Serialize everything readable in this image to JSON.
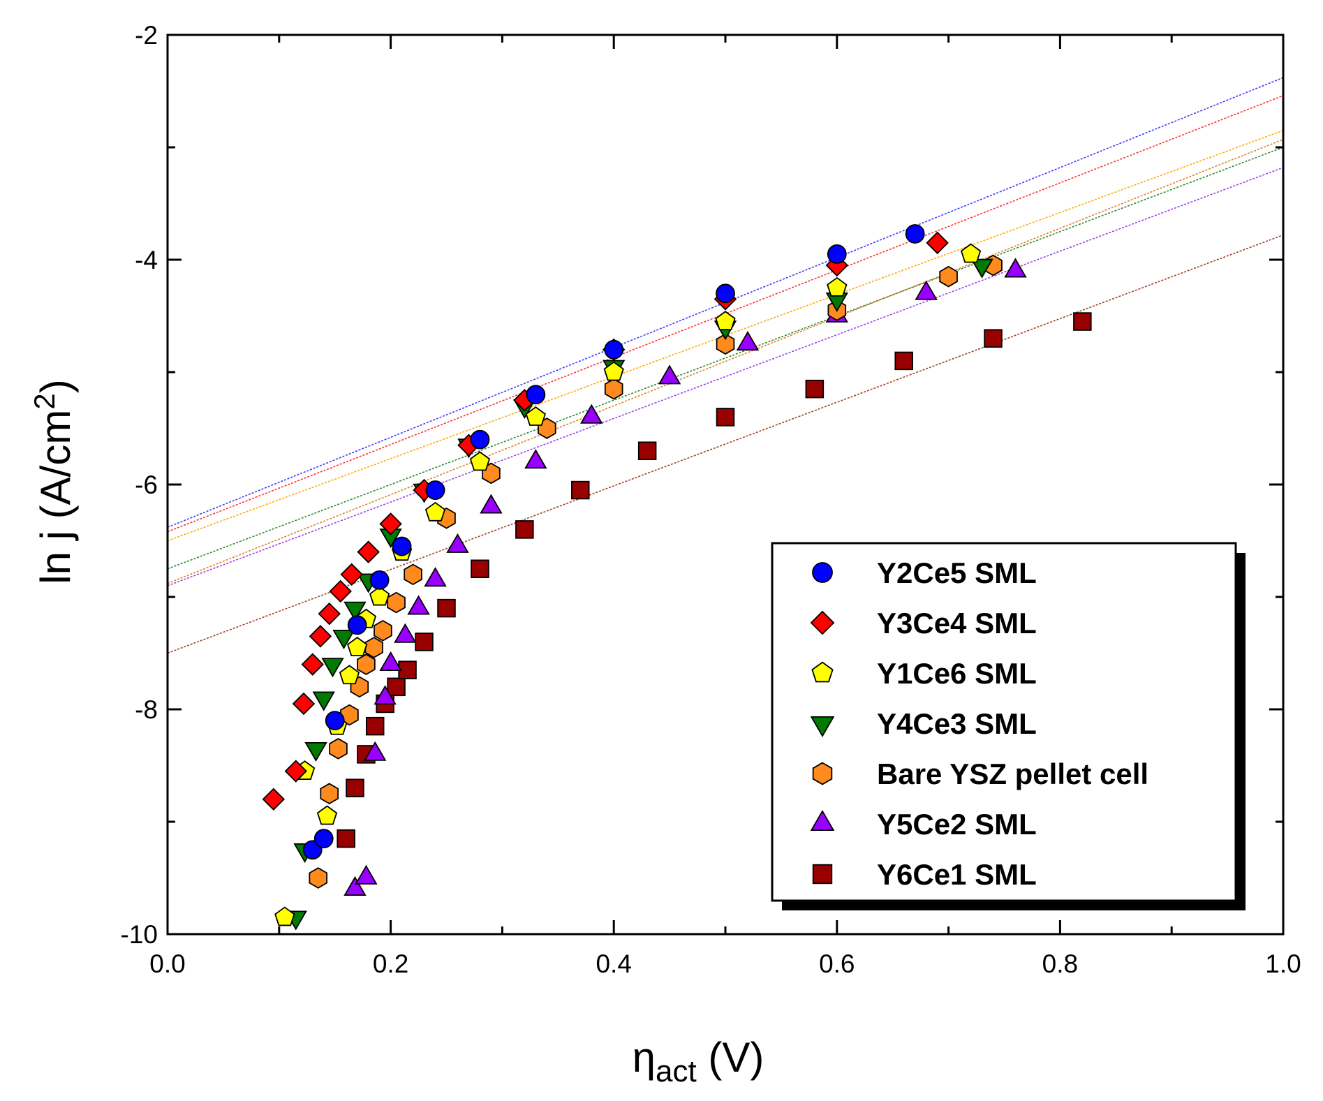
{
  "chart_data": {
    "type": "scatter",
    "xlabel": {
      "main": "η",
      "sub": "act",
      "unit": " (V)"
    },
    "ylabel": {
      "main": "ln j (A/cm",
      "sup": "2",
      "end": ")"
    },
    "xlim": [
      0.0,
      1.0
    ],
    "ylim": [
      -10,
      -2
    ],
    "xticks": [
      "0.0",
      "0.2",
      "0.4",
      "0.6",
      "0.8",
      "1.0"
    ],
    "yticks": [
      "-2",
      "-4",
      "-6",
      "-8",
      "-10"
    ],
    "legend_position": "bottom-right",
    "series": [
      {
        "name": "Y2Ce5 SML",
        "marker": "circle",
        "color": "#0000ff",
        "fit": {
          "intercept": -6.38,
          "slope": 4.0,
          "color": "#3b3bff"
        },
        "x": [
          0.13,
          0.14,
          0.15,
          0.17,
          0.19,
          0.21,
          0.24,
          0.28,
          0.33,
          0.4,
          0.5,
          0.6,
          0.67
        ],
        "y": [
          -9.25,
          -9.15,
          -8.1,
          -7.25,
          -6.85,
          -6.55,
          -6.05,
          -5.6,
          -5.2,
          -4.8,
          -4.3,
          -3.95,
          -3.77
        ]
      },
      {
        "name": "Y3Ce4 SML",
        "marker": "diamond",
        "color": "#ff0000",
        "fit": {
          "intercept": -6.42,
          "slope": 3.88,
          "color": "#ff3030"
        },
        "x": [
          0.095,
          0.115,
          0.122,
          0.13,
          0.137,
          0.145,
          0.155,
          0.165,
          0.18,
          0.2,
          0.23,
          0.27,
          0.32,
          0.4,
          0.5,
          0.6,
          0.69
        ],
        "y": [
          -8.8,
          -8.55,
          -7.95,
          -7.6,
          -7.35,
          -7.15,
          -6.95,
          -6.8,
          -6.6,
          -6.35,
          -6.05,
          -5.65,
          -5.25,
          -4.8,
          -4.35,
          -4.05,
          -3.85
        ]
      },
      {
        "name": "Y1Ce6 SML",
        "marker": "pentagon",
        "color": "#ffff00",
        "fit": {
          "intercept": -6.5,
          "slope": 3.65,
          "color": "#ffaa00"
        },
        "x": [
          0.105,
          0.123,
          0.143,
          0.152,
          0.163,
          0.17,
          0.178,
          0.19,
          0.21,
          0.24,
          0.28,
          0.33,
          0.4,
          0.5,
          0.6,
          0.72
        ],
        "y": [
          -9.85,
          -8.55,
          -8.95,
          -8.15,
          -7.7,
          -7.45,
          -7.2,
          -7.0,
          -6.6,
          -6.25,
          -5.8,
          -5.4,
          -5.0,
          -4.55,
          -4.25,
          -3.95
        ]
      },
      {
        "name": "Y4Ce3 SML",
        "marker": "triangle-down",
        "color": "#007a00",
        "fit": {
          "intercept": -6.75,
          "slope": 3.75,
          "color": "#2a8a2a"
        },
        "x": [
          0.115,
          0.123,
          0.133,
          0.14,
          0.148,
          0.158,
          0.168,
          0.18,
          0.2,
          0.23,
          0.27,
          0.32,
          0.4,
          0.5,
          0.6,
          0.73
        ],
        "y": [
          -9.85,
          -9.25,
          -8.35,
          -7.9,
          -7.6,
          -7.35,
          -7.1,
          -6.85,
          -6.45,
          -6.05,
          -5.65,
          -5.3,
          -4.95,
          -4.6,
          -4.35,
          -4.05
        ]
      },
      {
        "name": "Bare YSZ pellet cell",
        "marker": "hexagon",
        "color": "#ff8a1e",
        "fit": {
          "intercept": -6.88,
          "slope": 3.95,
          "color": "#e0802a"
        },
        "x": [
          0.135,
          0.145,
          0.153,
          0.163,
          0.172,
          0.178,
          0.185,
          0.193,
          0.205,
          0.22,
          0.25,
          0.29,
          0.34,
          0.4,
          0.5,
          0.6,
          0.7,
          0.74
        ],
        "y": [
          -9.5,
          -8.75,
          -8.35,
          -8.05,
          -7.8,
          -7.6,
          -7.45,
          -7.3,
          -7.05,
          -6.8,
          -6.3,
          -5.9,
          -5.5,
          -5.15,
          -4.75,
          -4.45,
          -4.15,
          -4.05
        ]
      },
      {
        "name": "Y5Ce2 SML",
        "marker": "triangle-up",
        "color": "#9a00ff",
        "fit": {
          "intercept": -6.9,
          "slope": 3.72,
          "color": "#9a40e8"
        },
        "x": [
          0.168,
          0.178,
          0.186,
          0.195,
          0.2,
          0.213,
          0.225,
          0.24,
          0.26,
          0.29,
          0.33,
          0.38,
          0.45,
          0.52,
          0.6,
          0.68,
          0.76
        ],
        "y": [
          -9.6,
          -9.5,
          -8.4,
          -7.9,
          -7.6,
          -7.35,
          -7.1,
          -6.85,
          -6.55,
          -6.2,
          -5.8,
          -5.4,
          -5.05,
          -4.75,
          -4.5,
          -4.3,
          -4.1
        ]
      },
      {
        "name": "Y6Ce1 SML",
        "marker": "square",
        "color": "#990000",
        "fit": {
          "intercept": -7.5,
          "slope": 3.72,
          "color": "#a04020"
        },
        "x": [
          0.16,
          0.168,
          0.178,
          0.186,
          0.195,
          0.205,
          0.215,
          0.23,
          0.25,
          0.28,
          0.32,
          0.37,
          0.43,
          0.5,
          0.58,
          0.66,
          0.74,
          0.82
        ],
        "y": [
          -9.15,
          -8.7,
          -8.4,
          -8.15,
          -7.95,
          -7.8,
          -7.65,
          -7.4,
          -7.1,
          -6.75,
          -6.4,
          -6.05,
          -5.7,
          -5.4,
          -5.15,
          -4.9,
          -4.7,
          -4.55
        ]
      }
    ]
  }
}
